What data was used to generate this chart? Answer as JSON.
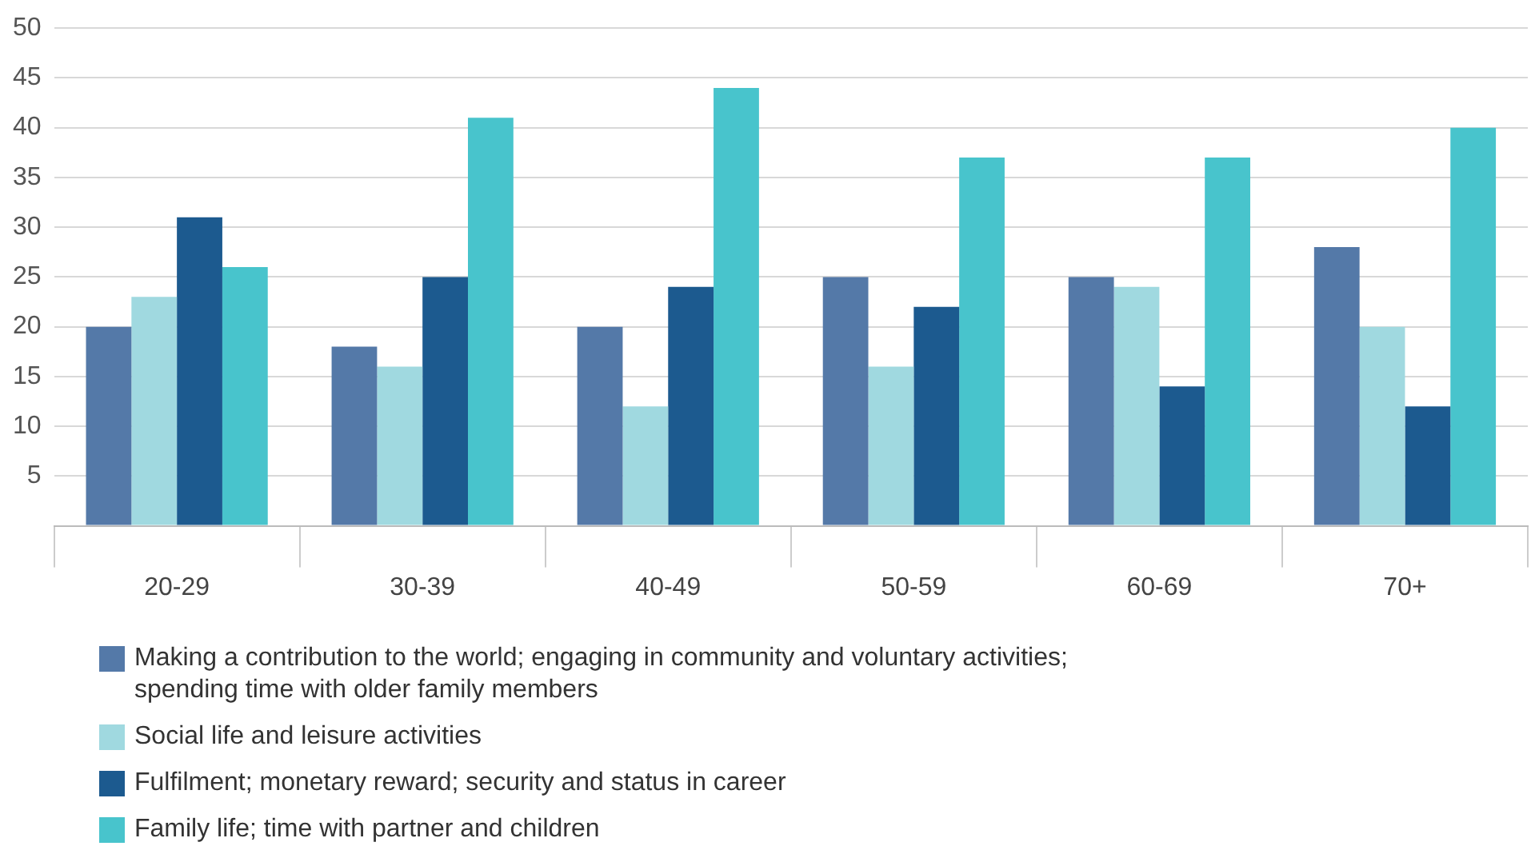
{
  "chart_data": {
    "type": "bar",
    "categories": [
      "20-29",
      "30-39",
      "40-49",
      "50-59",
      "60-69",
      "70+"
    ],
    "series": [
      {
        "name": "Making a contribution to the world; engaging in community and voluntary activities; spending time with older family members",
        "color": "#5479a8",
        "values": [
          20,
          18,
          20,
          25,
          25,
          28
        ]
      },
      {
        "name": "Social life and leisure activities",
        "color": "#a0d9e0",
        "values": [
          23,
          16,
          12,
          16,
          24,
          20
        ]
      },
      {
        "name": "Fulfilment; monetary reward; security and status in career",
        "color": "#1c5a8f",
        "values": [
          31,
          25,
          24,
          22,
          14,
          12
        ]
      },
      {
        "name": "Family life; time with partner and children",
        "color": "#48c4cc",
        "values": [
          26,
          41,
          44,
          37,
          37,
          40
        ]
      }
    ],
    "ylim": [
      0,
      50
    ],
    "yticks": [
      {
        "value": 0,
        "label": null
      },
      5,
      10,
      15,
      20,
      25,
      30,
      35,
      40,
      45,
      50
    ],
    "grid": "y",
    "legend": "bottom"
  }
}
